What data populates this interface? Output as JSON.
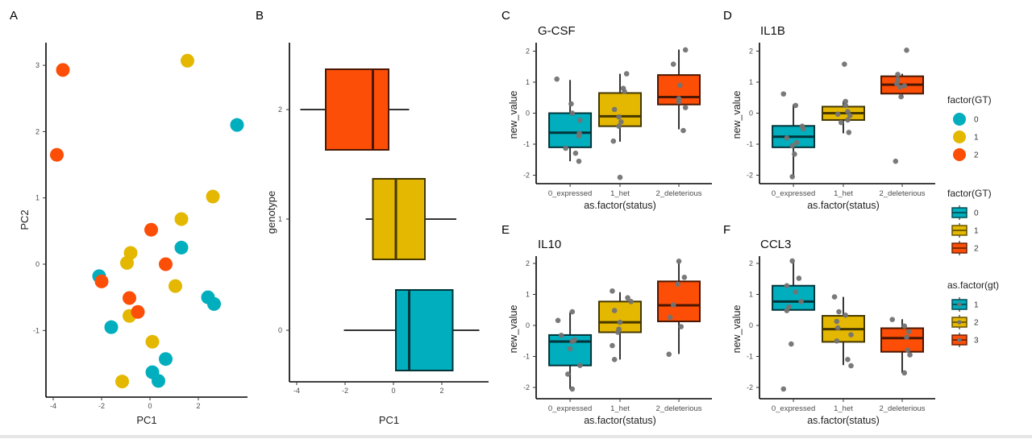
{
  "colors": {
    "gt0": "#00AEBD",
    "gt1": "#E4B800",
    "gt2": "#FC4E07",
    "jitter_point": "#737373",
    "axis": "#000000",
    "tick_text": "#4d4d4d",
    "box_outline": "#3a2a1a"
  },
  "chart_data": [
    {
      "panel": "A",
      "type": "scatter",
      "title": "",
      "xlabel": "PC1",
      "ylabel": "PC2",
      "xlim": [
        -4.3,
        3.9
      ],
      "ylim": [
        -2.0,
        3.3
      ],
      "xticks": [
        -4,
        -2,
        0,
        2
      ],
      "yticks": [
        -1,
        0,
        1,
        2,
        3
      ],
      "grid": false,
      "series": [
        {
          "name": "0",
          "points": [
            [
              3.6,
              2.1
            ],
            [
              1.3,
              0.25
            ],
            [
              -2.1,
              -0.18
            ],
            [
              2.4,
              -0.5
            ],
            [
              2.65,
              -0.6
            ],
            [
              -1.6,
              -0.95
            ],
            [
              0.65,
              -1.43
            ],
            [
              0.1,
              -1.63
            ],
            [
              0.35,
              -1.76
            ]
          ]
        },
        {
          "name": "1",
          "points": [
            [
              1.55,
              3.07
            ],
            [
              2.6,
              1.02
            ],
            [
              1.3,
              0.68
            ],
            [
              -0.8,
              0.17
            ],
            [
              -0.95,
              0.02
            ],
            [
              1.05,
              -0.33
            ],
            [
              -0.85,
              -0.78
            ],
            [
              0.1,
              -1.17
            ],
            [
              -1.15,
              -1.77
            ]
          ]
        },
        {
          "name": "2",
          "points": [
            [
              -3.6,
              2.93
            ],
            [
              -3.85,
              1.65
            ],
            [
              0.05,
              0.52
            ],
            [
              0.65,
              0.0
            ],
            [
              -2.0,
              -0.26
            ],
            [
              -0.85,
              -0.51
            ],
            [
              -0.5,
              -0.72
            ]
          ]
        }
      ]
    },
    {
      "panel": "B",
      "type": "boxplot",
      "orientation": "horizontal",
      "xlabel": "PC1",
      "ylabel": "genotype",
      "xlim": [
        -4.3,
        3.9
      ],
      "xticks": [
        -4,
        -2,
        0,
        2
      ],
      "categories": [
        "0",
        "1",
        "2"
      ],
      "boxes": [
        {
          "category": "0",
          "whisker_low": -2.05,
          "q1": 0.1,
          "median": 0.65,
          "q3": 2.45,
          "whisker_high": 3.55
        },
        {
          "category": "1",
          "whisker_low": -1.15,
          "q1": -0.85,
          "median": 0.1,
          "q3": 1.3,
          "whisker_high": 2.6
        },
        {
          "category": "2",
          "whisker_low": -3.85,
          "q1": -2.8,
          "median": -0.85,
          "q3": -0.2,
          "whisker_high": 0.65
        }
      ]
    },
    {
      "panel": "C",
      "type": "boxplot",
      "title": "G-CSF",
      "xlabel": "as.factor(status)",
      "ylabel": "new_value",
      "ylim": [
        -2.3,
        2.3
      ],
      "yticks": [
        -2,
        -1,
        0,
        1,
        2
      ],
      "categories": [
        "0_expressed",
        "1_het",
        "2_deleterious"
      ],
      "boxes": [
        {
          "whisker_low": -1.55,
          "q1": -1.1,
          "median": -0.63,
          "q3": 0.0,
          "whisker_high": 1.07
        },
        {
          "whisker_low": -0.92,
          "q1": -0.42,
          "median": -0.1,
          "q3": 0.65,
          "whisker_high": 1.27
        },
        {
          "whisker_low": -0.52,
          "q1": 0.28,
          "median": 0.52,
          "q3": 1.23,
          "whisker_high": 2.05
        }
      ],
      "points": [
        [
          [
            -0.6,
            1.1
          ],
          [
            0.05,
            0.3
          ],
          [
            0.1,
            0.0
          ],
          [
            0.45,
            -0.23
          ],
          [
            0.42,
            -0.65
          ],
          [
            0.4,
            -0.73
          ],
          [
            -0.2,
            -1.13
          ],
          [
            0.25,
            -1.29
          ],
          [
            0.4,
            -1.55
          ]
        ],
        [
          [
            -0.25,
            0.12
          ],
          [
            0.15,
            0.8
          ],
          [
            0.2,
            0.7
          ],
          [
            0.3,
            1.27
          ],
          [
            -0.05,
            -0.12
          ],
          [
            0.05,
            -0.28
          ],
          [
            -0.05,
            -0.42
          ],
          [
            -0.3,
            -0.9
          ],
          [
            0.0,
            -2.07
          ]
        ],
        [
          [
            -0.25,
            1.58
          ],
          [
            0.3,
            2.04
          ],
          [
            0.05,
            0.9
          ],
          [
            0.0,
            0.47
          ],
          [
            0.0,
            0.37
          ],
          [
            0.3,
            0.18
          ],
          [
            0.2,
            -0.56
          ]
        ]
      ]
    },
    {
      "panel": "D",
      "type": "boxplot",
      "title": "IL1B",
      "xlabel": "as.factor(status)",
      "ylabel": "new_value",
      "ylim": [
        -2.3,
        2.3
      ],
      "yticks": [
        -2,
        -1,
        0,
        1,
        2
      ],
      "categories": [
        "0_expressed",
        "1_het",
        "2_deleterious"
      ],
      "boxes": [
        {
          "whisker_low": -2.05,
          "q1": -1.1,
          "median": -0.76,
          "q3": -0.41,
          "whisker_high": 0.28
        },
        {
          "whisker_low": -0.65,
          "q1": -0.22,
          "median": 0.0,
          "q3": 0.21,
          "whisker_high": 0.38
        },
        {
          "whisker_low": 0.53,
          "q1": 0.63,
          "median": 0.92,
          "q3": 1.19,
          "whisker_high": 1.27
        }
      ],
      "points": [
        [
          [
            -0.45,
            0.62
          ],
          [
            0.1,
            0.25
          ],
          [
            0.4,
            -0.42
          ],
          [
            0.45,
            -0.5
          ],
          [
            -0.3,
            -0.8
          ],
          [
            0.15,
            -0.95
          ],
          [
            -0.05,
            -1.05
          ],
          [
            0.05,
            -1.32
          ],
          [
            -0.05,
            -2.05
          ]
        ],
        [
          [
            0.05,
            1.58
          ],
          [
            0.1,
            0.38
          ],
          [
            0.1,
            0.25
          ],
          [
            0.2,
            0.05
          ],
          [
            -0.25,
            -0.03
          ],
          [
            0.3,
            -0.08
          ],
          [
            0.2,
            -0.22
          ],
          [
            -0.1,
            -0.3
          ],
          [
            0.25,
            -0.62
          ]
        ],
        [
          [
            0.2,
            2.03
          ],
          [
            -0.2,
            1.25
          ],
          [
            -0.2,
            1.08
          ],
          [
            -0.25,
            0.95
          ],
          [
            -0.1,
            0.84
          ],
          [
            0.1,
            0.88
          ],
          [
            -0.05,
            0.53
          ],
          [
            -0.3,
            -1.55
          ]
        ]
      ]
    },
    {
      "panel": "E",
      "type": "boxplot",
      "title": "IL10",
      "xlabel": "as.factor(status)",
      "ylabel": "new_value",
      "ylim": [
        -2.3,
        2.3
      ],
      "yticks": [
        -2,
        -1,
        0,
        1,
        2
      ],
      "categories": [
        "0_expressed",
        "1_het",
        "2_deleterious"
      ],
      "boxes": [
        {
          "whisker_low": -2.05,
          "q1": -1.29,
          "median": -0.52,
          "q3": -0.31,
          "whisker_high": 0.42
        },
        {
          "whisker_low": -1.1,
          "q1": -0.22,
          "median": 0.1,
          "q3": 0.77,
          "whisker_high": 1.07
        },
        {
          "whisker_low": -0.92,
          "q1": 0.13,
          "median": 0.65,
          "q3": 1.42,
          "whisker_high": 2.08
        }
      ],
      "points": [
        [
          [
            -0.55,
            0.16
          ],
          [
            0.1,
            0.44
          ],
          [
            -0.4,
            -0.32
          ],
          [
            0.2,
            -0.47
          ],
          [
            0.1,
            -0.52
          ],
          [
            0.0,
            -0.75
          ],
          [
            0.45,
            -1.29
          ],
          [
            -0.1,
            -1.57
          ],
          [
            0.1,
            -2.05
          ]
        ],
        [
          [
            -0.35,
            1.11
          ],
          [
            0.35,
            0.89
          ],
          [
            0.5,
            0.77
          ],
          [
            -0.25,
            0.48
          ],
          [
            0.0,
            0.1
          ],
          [
            -0.05,
            -0.12
          ],
          [
            -0.1,
            -0.22
          ],
          [
            -0.35,
            -0.65
          ],
          [
            -0.25,
            -1.1
          ]
        ],
        [
          [
            0.0,
            2.07
          ],
          [
            0.25,
            1.55
          ],
          [
            -0.05,
            1.33
          ],
          [
            -0.25,
            0.66
          ],
          [
            -0.4,
            0.26
          ],
          [
            0.1,
            -0.04
          ],
          [
            -0.45,
            -0.93
          ]
        ]
      ]
    },
    {
      "panel": "F",
      "type": "boxplot",
      "title": "CCL3",
      "xlabel": "as.factor(status)",
      "ylabel": "new_value",
      "ylim": [
        -2.3,
        2.3
      ],
      "yticks": [
        -2,
        -1,
        0,
        1,
        2
      ],
      "categories": [
        "0_expressed",
        "1_het",
        "2_deleterious"
      ],
      "boxes": [
        {
          "whisker_low": 0.5,
          "q1": 0.5,
          "median": 0.77,
          "q3": 1.28,
          "whisker_high": 2.05
        },
        {
          "whisker_low": -1.28,
          "q1": -0.53,
          "median": -0.12,
          "q3": 0.31,
          "whisker_high": 0.92
        },
        {
          "whisker_low": -1.53,
          "q1": -0.85,
          "median": -0.41,
          "q3": -0.09,
          "whisker_high": 0.2
        }
      ],
      "points": [
        [
          [
            -0.05,
            2.08
          ],
          [
            0.25,
            1.52
          ],
          [
            -0.3,
            1.28
          ],
          [
            0.1,
            1.08
          ],
          [
            0.35,
            0.77
          ],
          [
            -0.2,
            0.6
          ],
          [
            -0.3,
            0.48
          ],
          [
            -0.1,
            -0.6
          ],
          [
            -0.45,
            -2.05
          ]
        ],
        [
          [
            -0.4,
            0.92
          ],
          [
            -0.2,
            0.44
          ],
          [
            0.1,
            0.33
          ],
          [
            -0.3,
            0.13
          ],
          [
            -0.25,
            -0.08
          ],
          [
            0.35,
            -0.3
          ],
          [
            -0.3,
            -0.5
          ],
          [
            0.2,
            -1.1
          ],
          [
            0.35,
            -1.3
          ]
        ],
        [
          [
            -0.45,
            0.19
          ],
          [
            0.1,
            -0.02
          ],
          [
            0.3,
            -0.2
          ],
          [
            0.2,
            -0.38
          ],
          [
            0.25,
            -0.8
          ],
          [
            0.35,
            -0.95
          ],
          [
            0.1,
            -1.53
          ]
        ]
      ]
    }
  ],
  "panel_labels": [
    "A",
    "B",
    "C",
    "D",
    "E",
    "F"
  ],
  "legends": [
    {
      "title": "factor(GT)",
      "kind": "point",
      "entries": [
        "0",
        "1",
        "2"
      ]
    },
    {
      "title": "factor(GT)",
      "kind": "box",
      "entries": [
        "0",
        "1",
        "2"
      ]
    },
    {
      "title": "as.factor(gt)",
      "kind": "box-point",
      "entries": [
        "1",
        "2",
        "3"
      ]
    }
  ]
}
